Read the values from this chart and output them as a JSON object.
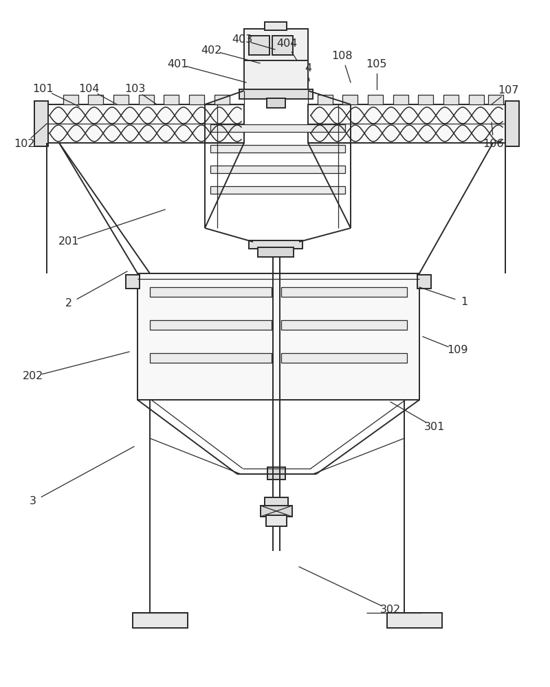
{
  "bg_color": "#ffffff",
  "lc": "#2a2a2a",
  "figsize": [
    8.0,
    10.0
  ],
  "labels_data": [
    [
      "101",
      63,
      870,
      115,
      845
    ],
    [
      "104",
      130,
      870,
      170,
      848
    ],
    [
      "103",
      196,
      870,
      228,
      848
    ],
    [
      "401",
      258,
      907,
      358,
      880
    ],
    [
      "402",
      307,
      927,
      378,
      908
    ],
    [
      "403",
      352,
      942,
      400,
      928
    ],
    [
      "404",
      417,
      936,
      432,
      912
    ],
    [
      "4",
      448,
      900,
      450,
      882
    ],
    [
      "108",
      498,
      918,
      510,
      880
    ],
    [
      "105",
      548,
      907,
      548,
      870
    ],
    [
      "107",
      740,
      868,
      715,
      848
    ],
    [
      "102",
      35,
      790,
      68,
      820
    ],
    [
      "106",
      718,
      790,
      715,
      822
    ],
    [
      "201",
      100,
      648,
      240,
      695
    ],
    [
      "2",
      100,
      558,
      185,
      605
    ],
    [
      "1",
      675,
      560,
      610,
      582
    ],
    [
      "109",
      665,
      490,
      615,
      510
    ],
    [
      "202",
      48,
      452,
      188,
      488
    ],
    [
      "301",
      632,
      378,
      568,
      415
    ],
    [
      "3",
      48,
      270,
      195,
      350
    ],
    [
      "302",
      568,
      112,
      435,
      175
    ]
  ]
}
